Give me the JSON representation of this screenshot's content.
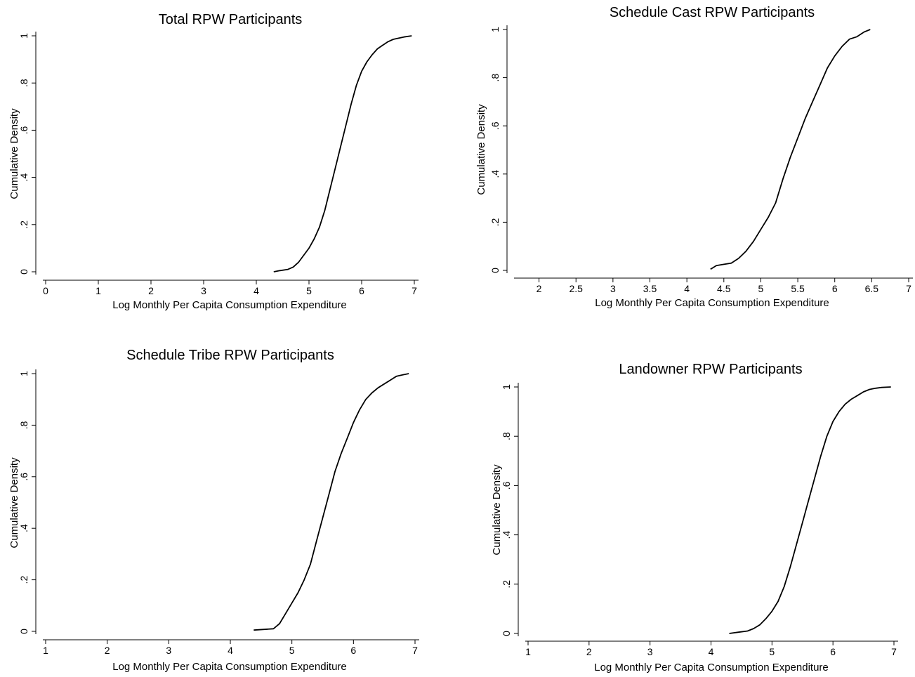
{
  "chart_data": [
    {
      "type": "line",
      "title": "Total RPW Participants",
      "xlabel": "Log Monthly Per Capita Consumption Expenditure",
      "ylabel": "Cumulative Density",
      "xlim": [
        0,
        7
      ],
      "ylim": [
        0,
        1
      ],
      "xticks": [
        0,
        1,
        2,
        3,
        4,
        5,
        6,
        7
      ],
      "xtick_labels": [
        "0",
        "1",
        "2",
        "3",
        "4",
        "5",
        "6",
        "7"
      ],
      "yticks": [
        0,
        0.2,
        0.4,
        0.6,
        0.8,
        1
      ],
      "ytick_labels": [
        "0",
        ".2",
        ".4",
        ".6",
        ".8",
        "1"
      ],
      "grid": false,
      "series": [
        {
          "x": [
            4.33,
            4.45,
            4.6,
            4.7,
            4.8,
            4.9,
            5.0,
            5.1,
            5.2,
            5.3,
            5.4,
            5.5,
            5.6,
            5.7,
            5.8,
            5.9,
            6.0,
            6.1,
            6.2,
            6.3,
            6.4,
            6.5,
            6.6,
            6.7,
            6.8,
            6.95
          ],
          "y": [
            0,
            0.005,
            0.01,
            0.02,
            0.04,
            0.07,
            0.1,
            0.14,
            0.19,
            0.26,
            0.35,
            0.44,
            0.53,
            0.62,
            0.71,
            0.79,
            0.85,
            0.89,
            0.92,
            0.945,
            0.96,
            0.975,
            0.985,
            0.99,
            0.995,
            1.0
          ]
        }
      ]
    },
    {
      "type": "line",
      "title": "Schedule Cast RPW Participants",
      "xlabel": "Log Monthly Per Capita Consumption Expenditure",
      "ylabel": "Cumulative Density",
      "xlim": [
        1.7,
        7
      ],
      "ylim": [
        0,
        1
      ],
      "xticks": [
        2,
        2.5,
        3,
        3.5,
        4,
        4.5,
        5,
        5.5,
        6,
        6.5,
        7
      ],
      "xtick_labels": [
        "2",
        "2.5",
        "3",
        "3.5",
        "4",
        "4.5",
        "5",
        "5.5",
        "6",
        "6.5",
        "7"
      ],
      "yticks": [
        0,
        0.2,
        0.4,
        0.6,
        0.8,
        1
      ],
      "ytick_labels": [
        "0",
        ".2",
        ".4",
        ".6",
        ".8",
        "1"
      ],
      "grid": false,
      "series": [
        {
          "x": [
            4.32,
            4.4,
            4.5,
            4.6,
            4.7,
            4.8,
            4.9,
            5.0,
            5.1,
            5.2,
            5.3,
            5.4,
            5.5,
            5.6,
            5.7,
            5.8,
            5.9,
            6.0,
            6.1,
            6.2,
            6.3,
            6.4,
            6.48
          ],
          "y": [
            0.005,
            0.02,
            0.025,
            0.03,
            0.05,
            0.08,
            0.12,
            0.17,
            0.22,
            0.28,
            0.38,
            0.47,
            0.55,
            0.63,
            0.7,
            0.77,
            0.84,
            0.89,
            0.93,
            0.96,
            0.97,
            0.99,
            1.0
          ]
        }
      ]
    },
    {
      "type": "line",
      "title": "Schedule Tribe RPW Participants",
      "xlabel": "Log Monthly Per Capita Consumption Expenditure",
      "ylabel": "Cumulative Density",
      "xlim": [
        1,
        7
      ],
      "ylim": [
        0,
        1
      ],
      "xticks": [
        1,
        2,
        3,
        4,
        5,
        6,
        7
      ],
      "xtick_labels": [
        "1",
        "2",
        "3",
        "4",
        "5",
        "6",
        "7"
      ],
      "yticks": [
        0,
        0.2,
        0.4,
        0.6,
        0.8,
        1
      ],
      "ytick_labels": [
        "0",
        ".2",
        ".4",
        ".6",
        ".8",
        "1"
      ],
      "grid": false,
      "series": [
        {
          "x": [
            4.38,
            4.7,
            4.8,
            4.9,
            5.0,
            5.1,
            5.2,
            5.3,
            5.4,
            5.5,
            5.6,
            5.7,
            5.8,
            5.9,
            6.0,
            6.1,
            6.2,
            6.3,
            6.4,
            6.5,
            6.6,
            6.7,
            6.8,
            6.9
          ],
          "y": [
            0.005,
            0.01,
            0.03,
            0.07,
            0.11,
            0.15,
            0.2,
            0.26,
            0.35,
            0.44,
            0.53,
            0.62,
            0.69,
            0.75,
            0.81,
            0.86,
            0.9,
            0.925,
            0.945,
            0.96,
            0.975,
            0.99,
            0.995,
            1.0
          ]
        }
      ]
    },
    {
      "type": "line",
      "title": "Landowner RPW Participants",
      "xlabel": "Log Monthly Per Capita Consumption Expenditure",
      "ylabel": "Cumulative Density",
      "xlim": [
        1,
        7
      ],
      "ylim": [
        0,
        1
      ],
      "xticks": [
        1,
        2,
        3,
        4,
        5,
        6,
        7
      ],
      "xtick_labels": [
        "1",
        "2",
        "3",
        "4",
        "5",
        "6",
        "7"
      ],
      "yticks": [
        0,
        0.2,
        0.4,
        0.6,
        0.8,
        1
      ],
      "ytick_labels": [
        "0",
        ".2",
        ".4",
        ".6",
        ".8",
        "1"
      ],
      "grid": false,
      "series": [
        {
          "x": [
            4.3,
            4.45,
            4.6,
            4.7,
            4.8,
            4.9,
            5.0,
            5.1,
            5.2,
            5.3,
            5.4,
            5.5,
            5.6,
            5.7,
            5.8,
            5.9,
            6.0,
            6.1,
            6.2,
            6.3,
            6.4,
            6.5,
            6.6,
            6.7,
            6.8,
            6.95
          ],
          "y": [
            0,
            0.005,
            0.01,
            0.02,
            0.035,
            0.06,
            0.09,
            0.13,
            0.19,
            0.27,
            0.36,
            0.45,
            0.54,
            0.63,
            0.72,
            0.8,
            0.86,
            0.9,
            0.93,
            0.95,
            0.965,
            0.98,
            0.99,
            0.995,
            0.998,
            1.0
          ]
        }
      ]
    }
  ]
}
